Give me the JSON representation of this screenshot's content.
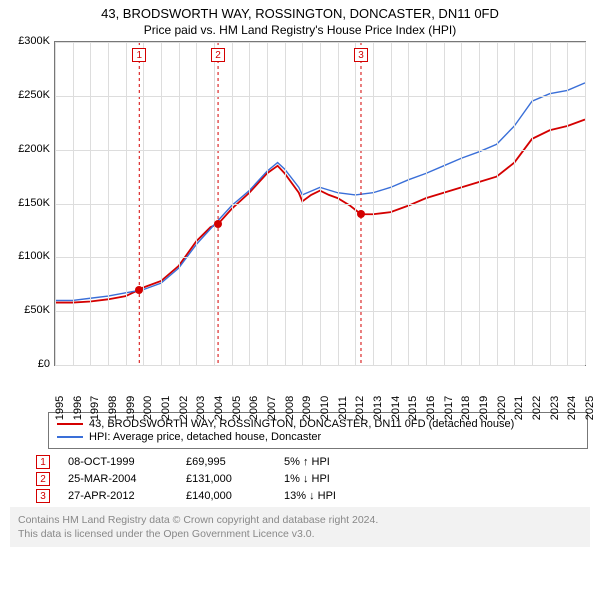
{
  "title_line1": "43, BRODSWORTH WAY, ROSSINGTON, DONCASTER, DN11 0FD",
  "title_line2": "Price paid vs. HM Land Registry's House Price Index (HPI)",
  "chart": {
    "type": "line",
    "background_color": "#ffffff",
    "grid_color": "#dddddd",
    "axis_color": "#777777",
    "y": {
      "min": 0,
      "max": 300000,
      "step": 50000,
      "prefix": "£",
      "suffix": "K",
      "divisor": 1000
    },
    "x": {
      "min": 1995,
      "max": 2025,
      "step": 1
    },
    "series": [
      {
        "name": "property",
        "label": "43, BRODSWORTH WAY, ROSSINGTON, DONCASTER, DN11 0FD (detached house)",
        "color": "#d40000",
        "width": 1.8,
        "points": [
          [
            1995,
            58000
          ],
          [
            1996,
            58000
          ],
          [
            1997,
            59000
          ],
          [
            1998,
            61000
          ],
          [
            1999,
            64000
          ],
          [
            1999.77,
            69995
          ],
          [
            2000,
            72000
          ],
          [
            2001,
            78000
          ],
          [
            2002,
            92000
          ],
          [
            2003,
            115000
          ],
          [
            2003.8,
            128000
          ],
          [
            2004.23,
            131000
          ],
          [
            2005,
            145000
          ],
          [
            2006,
            160000
          ],
          [
            2007,
            178000
          ],
          [
            2007.6,
            185000
          ],
          [
            2008,
            178000
          ],
          [
            2008.8,
            160000
          ],
          [
            2009,
            152000
          ],
          [
            2009.5,
            158000
          ],
          [
            2010,
            162000
          ],
          [
            2010.5,
            158000
          ],
          [
            2011,
            155000
          ],
          [
            2011.7,
            148000
          ],
          [
            2012.32,
            140000
          ],
          [
            2013,
            140000
          ],
          [
            2014,
            142000
          ],
          [
            2015,
            148000
          ],
          [
            2016,
            155000
          ],
          [
            2017,
            160000
          ],
          [
            2018,
            165000
          ],
          [
            2019,
            170000
          ],
          [
            2020,
            175000
          ],
          [
            2021,
            188000
          ],
          [
            2022,
            210000
          ],
          [
            2023,
            218000
          ],
          [
            2024,
            222000
          ],
          [
            2025,
            228000
          ]
        ]
      },
      {
        "name": "hpi",
        "label": "HPI: Average price, detached house, Doncaster",
        "color": "#3a6fd8",
        "width": 1.4,
        "points": [
          [
            1995,
            60000
          ],
          [
            1996,
            60000
          ],
          [
            1997,
            62000
          ],
          [
            1998,
            64000
          ],
          [
            1999,
            67000
          ],
          [
            2000,
            70000
          ],
          [
            2001,
            76000
          ],
          [
            2002,
            90000
          ],
          [
            2003,
            112000
          ],
          [
            2004,
            130000
          ],
          [
            2005,
            148000
          ],
          [
            2006,
            162000
          ],
          [
            2007,
            180000
          ],
          [
            2007.6,
            188000
          ],
          [
            2008,
            182000
          ],
          [
            2008.8,
            165000
          ],
          [
            2009,
            158000
          ],
          [
            2010,
            165000
          ],
          [
            2011,
            160000
          ],
          [
            2012,
            158000
          ],
          [
            2013,
            160000
          ],
          [
            2014,
            165000
          ],
          [
            2015,
            172000
          ],
          [
            2016,
            178000
          ],
          [
            2017,
            185000
          ],
          [
            2018,
            192000
          ],
          [
            2019,
            198000
          ],
          [
            2020,
            205000
          ],
          [
            2021,
            222000
          ],
          [
            2022,
            245000
          ],
          [
            2023,
            252000
          ],
          [
            2024,
            255000
          ],
          [
            2025,
            262000
          ]
        ]
      }
    ],
    "sale_markers": [
      {
        "n": 1,
        "x": 1999.77,
        "y": 69995,
        "color": "#d40000"
      },
      {
        "n": 2,
        "x": 2004.23,
        "y": 131000,
        "color": "#d40000"
      },
      {
        "n": 3,
        "x": 2012.32,
        "y": 140000,
        "color": "#d40000"
      }
    ]
  },
  "legend": {
    "series1": "43, BRODSWORTH WAY, ROSSINGTON, DONCASTER, DN11 0FD (detached house)",
    "series2": "HPI: Average price, detached house, Doncaster"
  },
  "sales": [
    {
      "n": "1",
      "date": "08-OCT-1999",
      "price": "£69,995",
      "delta": "5% ↑ HPI",
      "color": "#d40000"
    },
    {
      "n": "2",
      "date": "25-MAR-2004",
      "price": "£131,000",
      "delta": "1% ↓ HPI",
      "color": "#d40000"
    },
    {
      "n": "3",
      "date": "27-APR-2012",
      "price": "£140,000",
      "delta": "13% ↓ HPI",
      "color": "#d40000"
    }
  ],
  "footer_line1": "Contains HM Land Registry data © Crown copyright and database right 2024.",
  "footer_line2": "This data is licensed under the Open Government Licence v3.0."
}
